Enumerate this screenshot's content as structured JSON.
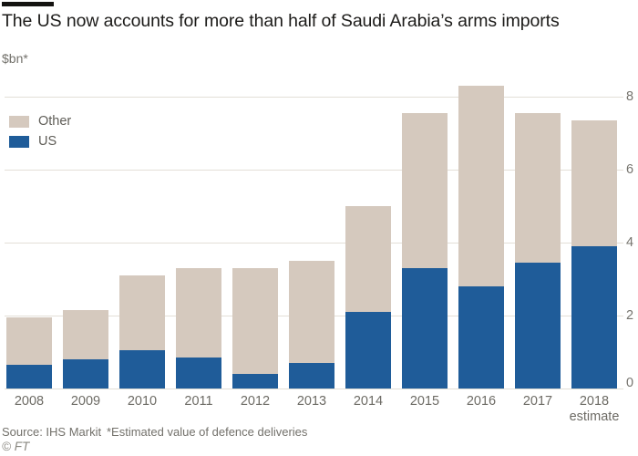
{
  "header": {
    "title": "The US now accounts for more than half of Saudi Arabia’s arms imports",
    "subtitle": "$bn*"
  },
  "legend": [
    {
      "label": "Other",
      "color": "#d5c9be"
    },
    {
      "label": "US",
      "color": "#1f5c99"
    }
  ],
  "chart_data": {
    "type": "bar",
    "stacked": true,
    "title": "The US now accounts for more than half of Saudi Arabia’s arms imports",
    "ylabel": "$bn*",
    "categories": [
      "2008",
      "2009",
      "2010",
      "2011",
      "2012",
      "2013",
      "2014",
      "2015",
      "2016",
      "2017",
      "2018"
    ],
    "x_sublabels": {
      "2018": "estimate"
    },
    "series": [
      {
        "name": "US",
        "color": "#1f5c99",
        "values": [
          0.65,
          0.8,
          1.05,
          0.85,
          0.4,
          0.7,
          2.1,
          3.3,
          2.8,
          3.45,
          3.9
        ]
      },
      {
        "name": "Other",
        "color": "#d5c9be",
        "values": [
          1.3,
          1.35,
          2.05,
          2.45,
          2.9,
          2.8,
          2.9,
          4.25,
          5.5,
          4.1,
          3.45
        ]
      }
    ],
    "totals": [
      1.95,
      2.15,
      3.1,
      3.3,
      3.3,
      3.5,
      5.0,
      7.55,
      8.3,
      7.55,
      7.35
    ],
    "ylim": [
      0,
      8.4
    ],
    "yticks": [
      0,
      2,
      4,
      6,
      8
    ],
    "grid": true,
    "gridline_color": "#e3dfd7",
    "legend_position": "top-left",
    "axis_side": "right"
  },
  "footer": {
    "source": "Source: IHS Markit",
    "note": "*Estimated value of defence deliveries",
    "copyright": "© FT"
  }
}
